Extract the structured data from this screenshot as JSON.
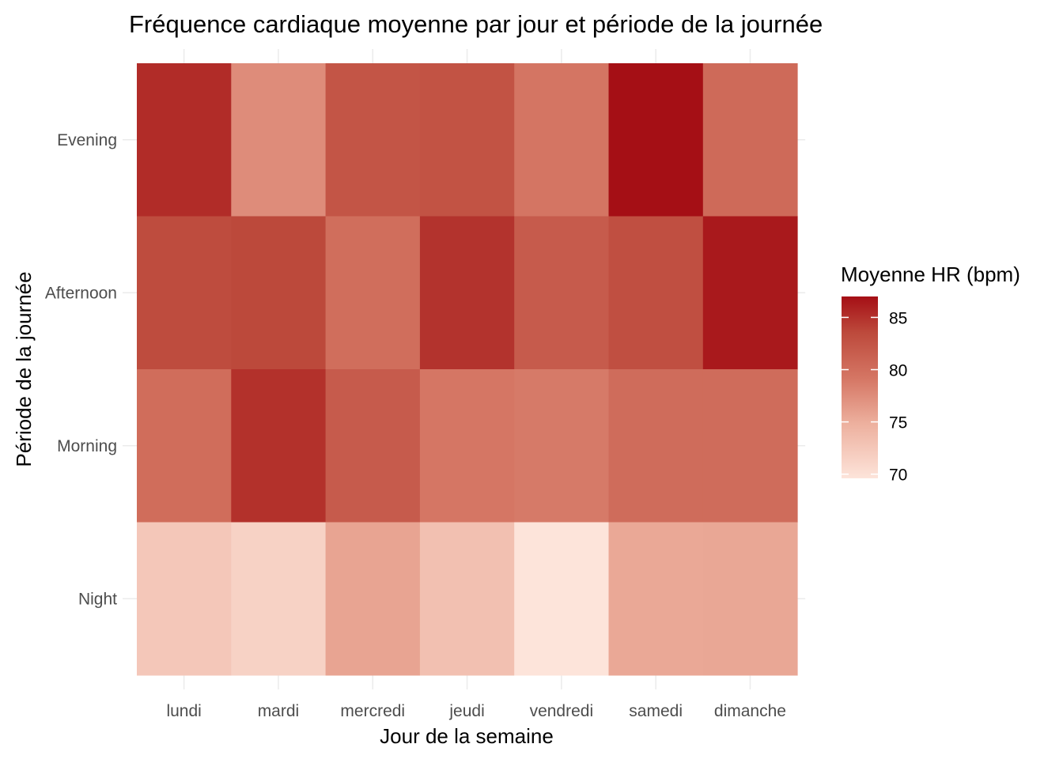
{
  "chart_data": {
    "type": "heatmap",
    "title": "Fréquence cardiaque moyenne par jour et période de la journée",
    "xlabel": "Jour de la semaine",
    "ylabel": "Période de la journée",
    "x_categories": [
      "lundi",
      "mardi",
      "mercredi",
      "jeudi",
      "vendredi",
      "samedi",
      "dimanche"
    ],
    "y_categories": [
      "Evening",
      "Afternoon",
      "Morning",
      "Night"
    ],
    "values": [
      [
        85.3,
        77.5,
        82.4,
        82.6,
        79.3,
        87.0,
        80.4
      ],
      [
        83.3,
        83.6,
        80.0,
        84.9,
        81.8,
        83.0,
        86.4
      ],
      [
        80.1,
        85.0,
        81.8,
        79.2,
        78.9,
        80.2,
        80.2
      ],
      [
        72.5,
        71.4,
        75.7,
        73.2,
        69.6,
        75.4,
        75.5
      ]
    ],
    "legend": {
      "title": "Moyenne HR (bpm)",
      "ticks": [
        85,
        80,
        75,
        70
      ],
      "range": [
        69.6,
        87.0
      ],
      "low_color": "#fde4da",
      "high_color": "#a50f15",
      "placement": "right"
    },
    "grid": true
  }
}
